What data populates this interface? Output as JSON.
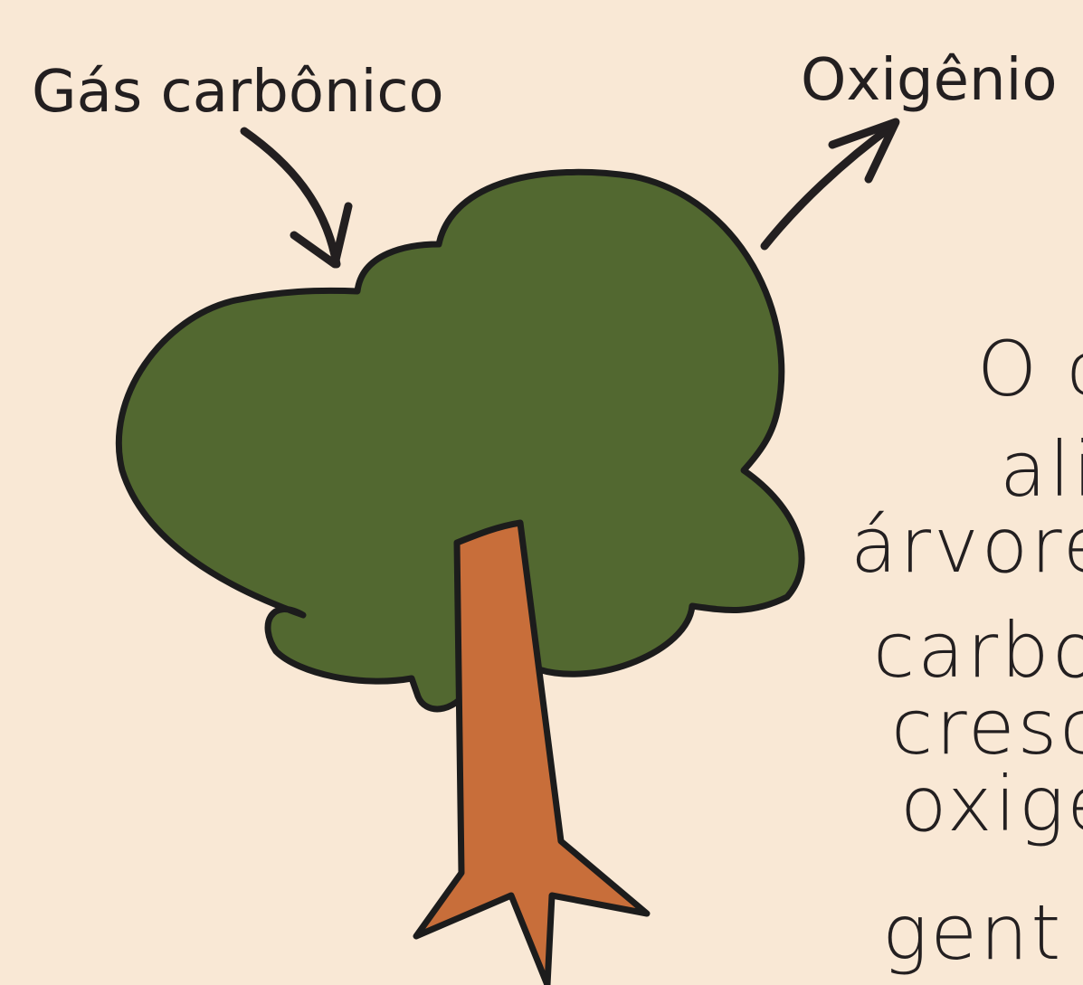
{
  "labels": {
    "carbon_dioxide": "Gás carbônico",
    "oxygen": "Oxigênio"
  },
  "paragraph": {
    "lines": [
      "O c",
      "ali",
      "árvore",
      "carbo",
      "cresc",
      "oxige",
      "gent"
    ]
  }
}
